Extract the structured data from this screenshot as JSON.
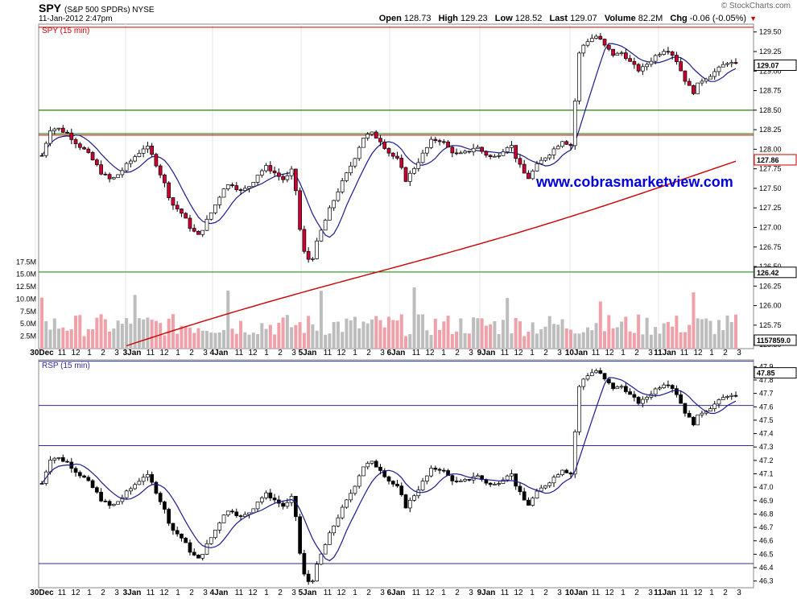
{
  "header": {
    "symbol": "SPY",
    "description": "(S&P 500 SPDRs) NYSE",
    "datetime": "11-Jan-2012 2:47pm",
    "brand": "© StockCharts.com",
    "open_label": "Open",
    "open": "128.73",
    "high_label": "High",
    "high": "129.23",
    "low_label": "Low",
    "low": "128.52",
    "last_label": "Last",
    "last": "129.07",
    "volume_label": "Volume",
    "volume": "82.2M",
    "chg_label": "Chg",
    "chg": "-0.06 (-0.05%)"
  },
  "watermark": "www.cobrasmarketview.com",
  "chart_data": [
    {
      "type": "candlestick",
      "panel": "SPY (15 min)",
      "ylim": [
        125.45,
        129.6
      ],
      "yticks": [
        "129.50",
        "129.25",
        "129.00",
        "128.75",
        "128.50",
        "128.25",
        "128.00",
        "127.75",
        "127.50",
        "127.25",
        "127.00",
        "126.75",
        "126.50",
        "126.25",
        "126.00",
        "125.75",
        "125.50"
      ],
      "last_badge": "129.07",
      "ma200_badge": "127.86",
      "extra_badge": "126.42",
      "hlines": [
        {
          "y": 129.56,
          "color": "#cc0000"
        },
        {
          "y": 128.5,
          "color": "#cc0000"
        },
        {
          "y": 128.18,
          "color": "#cc0000"
        },
        {
          "y": 128.2,
          "color": "#008800"
        },
        {
          "y": 128.5,
          "color": "#008800"
        },
        {
          "y": 126.43,
          "color": "#008800"
        }
      ],
      "closes": [
        127.92,
        128.27,
        128.26,
        128.2,
        128.08,
        127.98,
        127.84,
        127.68,
        127.6,
        127.7,
        127.82,
        127.94,
        128.05,
        127.86,
        127.6,
        127.3,
        127.2,
        127.02,
        126.88,
        127.08,
        127.29,
        127.52,
        127.56,
        127.45,
        127.54,
        127.7,
        127.78,
        127.68,
        127.6,
        127.75,
        126.72,
        126.55,
        126.9,
        127.18,
        127.44,
        127.65,
        127.88,
        128.15,
        128.2,
        128.12,
        127.96,
        127.86,
        127.6,
        127.78,
        127.95,
        128.12,
        128.12,
        128.0,
        127.92,
        127.96,
        128.04,
        127.95,
        127.88,
        127.98,
        128.08,
        127.8,
        127.62,
        127.78,
        127.9,
        128.0,
        128.12,
        128.05,
        129.28,
        129.4,
        129.45,
        129.3,
        129.2,
        129.24,
        129.08,
        129.0,
        129.12,
        129.22,
        129.3,
        129.18,
        128.92,
        128.72,
        128.88,
        128.95,
        129.02,
        129.12,
        129.07
      ],
      "vol_ylim": [
        0,
        19500000
      ],
      "vol_yticks": [
        "17.5M",
        "15.0M",
        "12.5M",
        "10.0M",
        "7.5M",
        "5.0M",
        "2.5M"
      ],
      "vol_badge": "1157859.0"
    },
    {
      "type": "line",
      "panel": "RSP (15 min)",
      "ylim": [
        46.25,
        47.95
      ],
      "yticks": [
        "47.9",
        "47.8",
        "47.7",
        "47.6",
        "47.5",
        "47.4",
        "47.3",
        "47.2",
        "47.1",
        "47.0",
        "46.9",
        "46.8",
        "46.7",
        "46.6",
        "46.5",
        "46.4",
        "46.3"
      ],
      "last_badge": "47.85",
      "hlines": [
        47.94,
        47.61,
        47.31,
        46.43
      ]
    }
  ],
  "xaxis": {
    "labels": [
      {
        "t": "30Dec",
        "b": true,
        "x": 52
      },
      {
        "t": "11",
        "x": 77
      },
      {
        "t": "12",
        "x": 94
      },
      {
        "t": "1",
        "x": 111
      },
      {
        "t": "2",
        "x": 128
      },
      {
        "t": "3",
        "x": 145
      },
      {
        "t": "3Jan",
        "b": true,
        "x": 164
      },
      {
        "t": "11",
        "x": 187
      },
      {
        "t": "12",
        "x": 204
      },
      {
        "t": "1",
        "x": 221
      },
      {
        "t": "2",
        "x": 238
      },
      {
        "t": "3",
        "x": 255
      },
      {
        "t": "4Jan",
        "b": true,
        "x": 272
      },
      {
        "t": "11",
        "x": 297
      },
      {
        "t": "12",
        "x": 314
      },
      {
        "t": "1",
        "x": 331
      },
      {
        "t": "2",
        "x": 348
      },
      {
        "t": "3",
        "x": 365
      },
      {
        "t": "5Jan",
        "b": true,
        "x": 382
      },
      {
        "t": "11",
        "x": 407
      },
      {
        "t": "12",
        "x": 424
      },
      {
        "t": "1",
        "x": 441
      },
      {
        "t": "2",
        "x": 458
      },
      {
        "t": "3",
        "x": 475
      },
      {
        "t": "6Jan",
        "b": true,
        "x": 492
      },
      {
        "t": "11",
        "x": 517
      },
      {
        "t": "12",
        "x": 534
      },
      {
        "t": "1",
        "x": 551
      },
      {
        "t": "2",
        "x": 568
      },
      {
        "t": "3",
        "x": 585
      },
      {
        "t": "9Jan",
        "b": true,
        "x": 604
      },
      {
        "t": "11",
        "x": 627
      },
      {
        "t": "12",
        "x": 644
      },
      {
        "t": "1",
        "x": 661
      },
      {
        "t": "2",
        "x": 678
      },
      {
        "t": "3",
        "x": 695
      },
      {
        "t": "10Jan",
        "b": true,
        "x": 716
      },
      {
        "t": "11",
        "x": 740
      },
      {
        "t": "12",
        "x": 757
      },
      {
        "t": "1",
        "x": 774
      },
      {
        "t": "2",
        "x": 791
      },
      {
        "t": "3",
        "x": 808
      },
      {
        "t": "11Jan",
        "b": true,
        "x": 826
      },
      {
        "t": "11",
        "x": 850
      },
      {
        "t": "12",
        "x": 867
      },
      {
        "t": "1",
        "x": 884
      },
      {
        "t": "2",
        "x": 901
      },
      {
        "t": "3",
        "x": 918
      }
    ]
  }
}
